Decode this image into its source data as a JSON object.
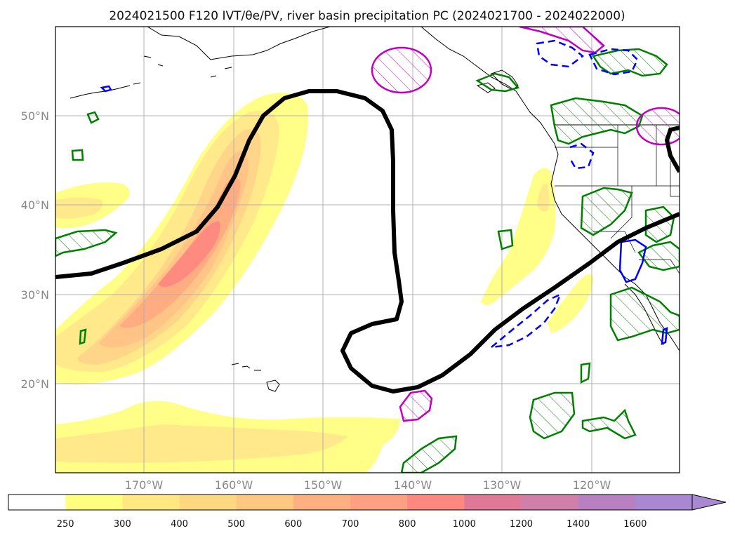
{
  "title": "2024021500 F120 IVT/θe/PV, river basin precipitation PC (2024021700 - 2024022000)",
  "map": {
    "lat_labels": [
      "50°N",
      "40°N",
      "30°N",
      "20°N"
    ],
    "lon_labels": [
      "170°W",
      "160°W",
      "150°W",
      "140°W",
      "130°W",
      "120°W"
    ]
  },
  "colorbar": {
    "labels": [
      "250",
      "300",
      "400",
      "500",
      "600",
      "700",
      "800",
      "1000",
      "1200",
      "1400",
      "1600"
    ],
    "colors": [
      "#ffffff",
      "#ffff80",
      "#ffe880",
      "#ffd880",
      "#ffc880",
      "#ffb080",
      "#ffa080",
      "#ff8880",
      "#e07898",
      "#d080a8",
      "#b880c0",
      "#a888d0"
    ],
    "extend": "max"
  },
  "colors": {
    "ivt_fill": [
      "#ffff88",
      "#ffe98a",
      "#ffd689",
      "#ffc486",
      "#ffac82",
      "#ff8a80"
    ],
    "theta_contour": "#000000",
    "positive_anomaly": "#008000",
    "negative_anomaly": "#0000ff",
    "pv_contour": "#c000c0",
    "coastline": "#000000",
    "gridline": "#b0b0b0"
  }
}
